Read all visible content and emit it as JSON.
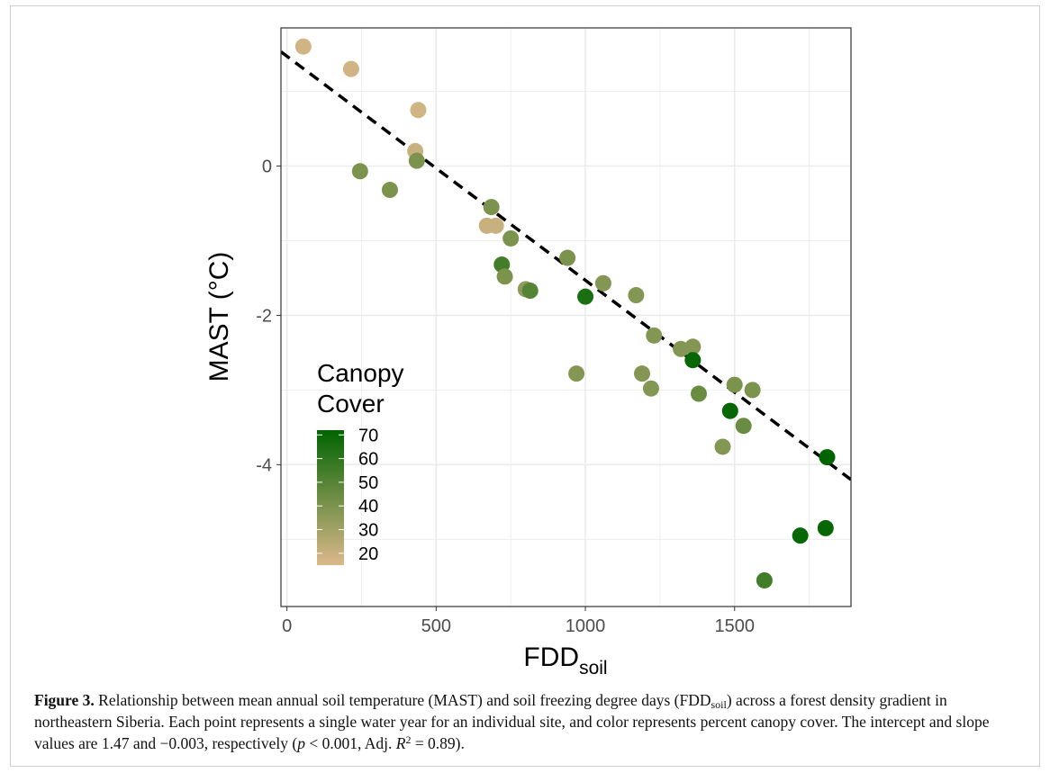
{
  "chart_data": {
    "type": "scatter",
    "x_axis": {
      "label_main": "FDD",
      "label_sub": "soil",
      "range": [
        -20,
        1890
      ],
      "ticks": [
        0,
        500,
        1000,
        1500
      ],
      "tick_labels": [
        "0",
        "500",
        "1000",
        "1500"
      ]
    },
    "y_axis": {
      "label": "MAST (°C)",
      "range": [
        -5.9,
        1.85
      ],
      "ticks": [
        0,
        -2,
        -4
      ],
      "tick_labels": [
        "0",
        "-2",
        "-4"
      ]
    },
    "grid": true,
    "background": "#ffffff",
    "color_scale": {
      "title_line1": "Canopy",
      "title_line2": "Cover",
      "min": 15,
      "max": 72,
      "low_color": "#dcb88b",
      "high_color": "#006400",
      "ticks": [
        70,
        60,
        50,
        40,
        30,
        20
      ],
      "tick_labels": [
        "70",
        "60",
        "50",
        "40",
        "30",
        "20"
      ],
      "position": "bottom-left"
    },
    "trend_line": {
      "intercept": 1.47,
      "slope": -0.003,
      "style": "dashed",
      "color": "#000000"
    },
    "points": [
      {
        "x": 55,
        "y": 1.6,
        "cover": 18
      },
      {
        "x": 215,
        "y": 1.3,
        "cover": 18
      },
      {
        "x": 440,
        "y": 0.75,
        "cover": 18
      },
      {
        "x": 430,
        "y": 0.2,
        "cover": 20
      },
      {
        "x": 435,
        "y": 0.07,
        "cover": 40
      },
      {
        "x": 245,
        "y": -0.07,
        "cover": 40
      },
      {
        "x": 345,
        "y": -0.32,
        "cover": 40
      },
      {
        "x": 685,
        "y": -0.55,
        "cover": 40
      },
      {
        "x": 670,
        "y": -0.8,
        "cover": 20
      },
      {
        "x": 700,
        "y": -0.8,
        "cover": 20
      },
      {
        "x": 750,
        "y": -0.97,
        "cover": 40
      },
      {
        "x": 720,
        "y": -1.32,
        "cover": 55
      },
      {
        "x": 730,
        "y": -1.48,
        "cover": 40
      },
      {
        "x": 800,
        "y": -1.65,
        "cover": 35
      },
      {
        "x": 815,
        "y": -1.67,
        "cover": 50
      },
      {
        "x": 940,
        "y": -1.23,
        "cover": 40
      },
      {
        "x": 1000,
        "y": -1.75,
        "cover": 65
      },
      {
        "x": 1060,
        "y": -1.57,
        "cover": 38
      },
      {
        "x": 1170,
        "y": -1.73,
        "cover": 38
      },
      {
        "x": 970,
        "y": -2.78,
        "cover": 38
      },
      {
        "x": 1230,
        "y": -2.27,
        "cover": 38
      },
      {
        "x": 1190,
        "y": -2.78,
        "cover": 38
      },
      {
        "x": 1220,
        "y": -2.98,
        "cover": 38
      },
      {
        "x": 1320,
        "y": -2.45,
        "cover": 38
      },
      {
        "x": 1360,
        "y": -2.42,
        "cover": 38
      },
      {
        "x": 1360,
        "y": -2.6,
        "cover": 70
      },
      {
        "x": 1380,
        "y": -3.05,
        "cover": 45
      },
      {
        "x": 1500,
        "y": -2.93,
        "cover": 40
      },
      {
        "x": 1560,
        "y": -3.0,
        "cover": 40
      },
      {
        "x": 1485,
        "y": -3.28,
        "cover": 70
      },
      {
        "x": 1530,
        "y": -3.48,
        "cover": 45
      },
      {
        "x": 1460,
        "y": -3.76,
        "cover": 38
      },
      {
        "x": 1810,
        "y": -3.9,
        "cover": 72
      },
      {
        "x": 1720,
        "y": -4.95,
        "cover": 70
      },
      {
        "x": 1805,
        "y": -4.85,
        "cover": 70
      },
      {
        "x": 1600,
        "y": -5.55,
        "cover": 55
      }
    ]
  },
  "caption": {
    "label": "Figure 3.",
    "text_1": " Relationship between mean annual soil temperature (MAST) and soil freezing degree days (FDD",
    "sub_1": "soil",
    "text_2": ") across a forest density gradient in northeastern Siberia. Each point represents a single water year for an individual site, and color represents percent canopy cover. The intercept and slope values are 1.47 and −0.003, respectively (",
    "p_symbol": "p",
    "text_3": " < 0.001, Adj. ",
    "r_symbol": "R",
    "sup_1": "2",
    "text_4": " = 0.89)."
  }
}
